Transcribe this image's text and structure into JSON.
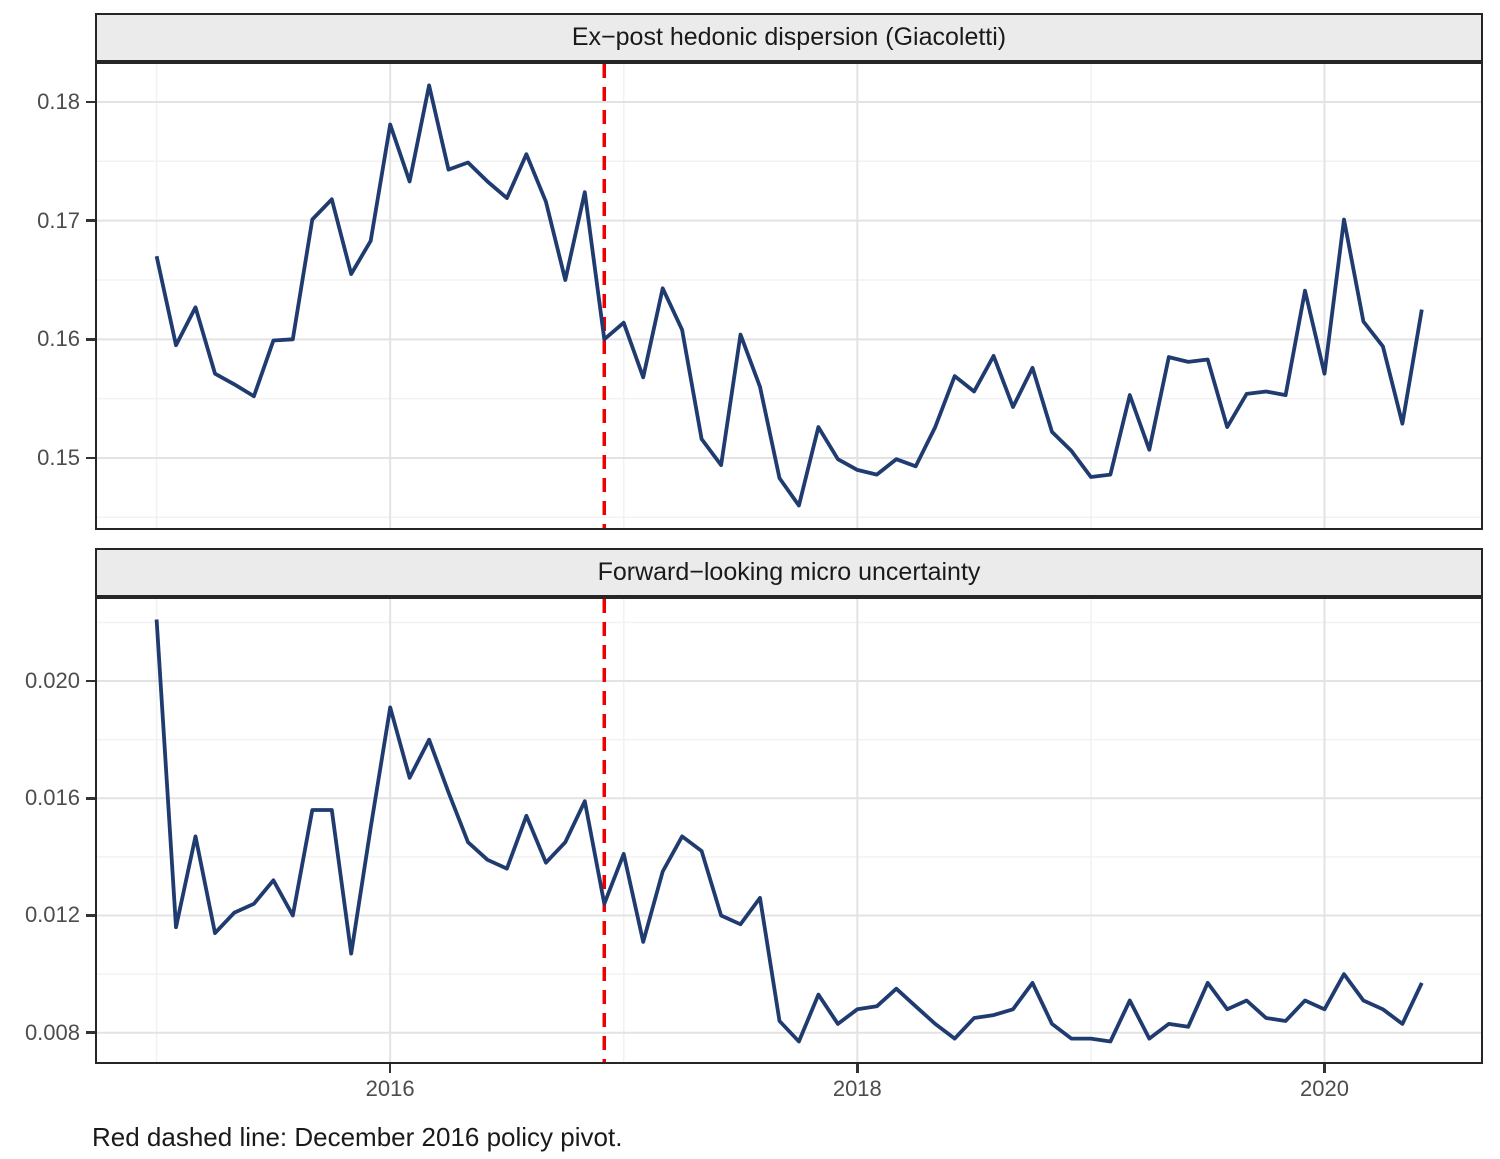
{
  "figure": {
    "caption": "Red dashed line: December 2016 policy pivot.",
    "vline": {
      "x_year": 2016.9167,
      "meaning": "December 2016 policy pivot",
      "color": "#EE0000"
    },
    "colors": {
      "line": "#1F3B70",
      "vline": "#EE0000",
      "strip_bg": "#EBEBEB",
      "panel_border": "#262626",
      "grid_major": "#E3E3E3",
      "grid_minor": "#F2F2F2",
      "tick_text": "#4D4D4D",
      "tick_mark": "#333333",
      "title_text": "#1A1A1A"
    },
    "x_axis": {
      "xlim": [
        2014.745,
        2020.67
      ],
      "major_ticks": [
        2016,
        2018,
        2020
      ],
      "major_tick_labels": [
        "2016",
        "2018",
        "2020"
      ],
      "minor_ticks": [
        2015,
        2017,
        2019
      ]
    }
  },
  "chart_data": [
    {
      "type": "line",
      "title": "Ex−post hedonic dispersion (Giacoletti)",
      "x_start_year": 2015.0,
      "x_step_years": 0.0833333,
      "x_range_months": [
        "2015-01",
        "2020-06"
      ],
      "ylim": [
        0.1441,
        0.1832
      ],
      "yticks": [
        0.15,
        0.16,
        0.17,
        0.18
      ],
      "ytick_labels": [
        "0.15",
        "0.16",
        "0.17",
        "0.18"
      ],
      "yminor": [
        0.145,
        0.155,
        0.165,
        0.175
      ],
      "grid": true,
      "legend": "none",
      "values": [
        0.167,
        0.1595,
        0.1627,
        0.1571,
        0.1562,
        0.1552,
        0.1599,
        0.16,
        0.1701,
        0.1718,
        0.1655,
        0.1683,
        0.1781,
        0.1733,
        0.1814,
        0.1743,
        0.1749,
        0.1733,
        0.1719,
        0.1756,
        0.1716,
        0.165,
        0.1724,
        0.16,
        0.1614,
        0.1568,
        0.1643,
        0.1608,
        0.1516,
        0.1494,
        0.1604,
        0.156,
        0.1483,
        0.146,
        0.1526,
        0.1499,
        0.149,
        0.1486,
        0.1499,
        0.1493,
        0.1526,
        0.1569,
        0.1556,
        0.1586,
        0.1543,
        0.1576,
        0.1522,
        0.1506,
        0.1484,
        0.1486,
        0.1553,
        0.1507,
        0.1585,
        0.1581,
        0.1583,
        0.1526,
        0.1554,
        0.1556,
        0.1553,
        0.1641,
        0.1571,
        0.1701,
        0.1615,
        0.1594,
        0.1529,
        0.1625
      ]
    },
    {
      "type": "line",
      "title": "Forward−looking micro uncertainty",
      "x_start_year": 2015.0,
      "x_step_years": 0.0833333,
      "x_range_months": [
        "2015-01",
        "2020-06"
      ],
      "ylim": [
        0.007,
        0.0228
      ],
      "yticks": [
        0.008,
        0.012,
        0.016,
        0.02
      ],
      "ytick_labels": [
        "0.008",
        "0.012",
        "0.016",
        "0.020"
      ],
      "yminor": [
        0.01,
        0.014,
        0.018,
        0.022
      ],
      "grid": true,
      "legend": "none",
      "values": [
        0.0221,
        0.0116,
        0.0147,
        0.0114,
        0.0121,
        0.0124,
        0.0132,
        0.012,
        0.0156,
        0.0156,
        0.0107,
        0.015,
        0.0191,
        0.0167,
        0.018,
        0.0162,
        0.0145,
        0.0139,
        0.0136,
        0.0154,
        0.0138,
        0.0145,
        0.0159,
        0.0124,
        0.0141,
        0.0111,
        0.0135,
        0.0147,
        0.0142,
        0.012,
        0.0117,
        0.0126,
        0.0084,
        0.0077,
        0.0093,
        0.0083,
        0.0088,
        0.0089,
        0.0095,
        0.0089,
        0.0083,
        0.0078,
        0.0085,
        0.0086,
        0.0088,
        0.0097,
        0.0083,
        0.0078,
        0.0078,
        0.0077,
        0.0091,
        0.0078,
        0.0083,
        0.0082,
        0.0097,
        0.0088,
        0.0091,
        0.0085,
        0.0084,
        0.0091,
        0.0088,
        0.01,
        0.0091,
        0.0088,
        0.0083,
        0.0097
      ]
    }
  ]
}
